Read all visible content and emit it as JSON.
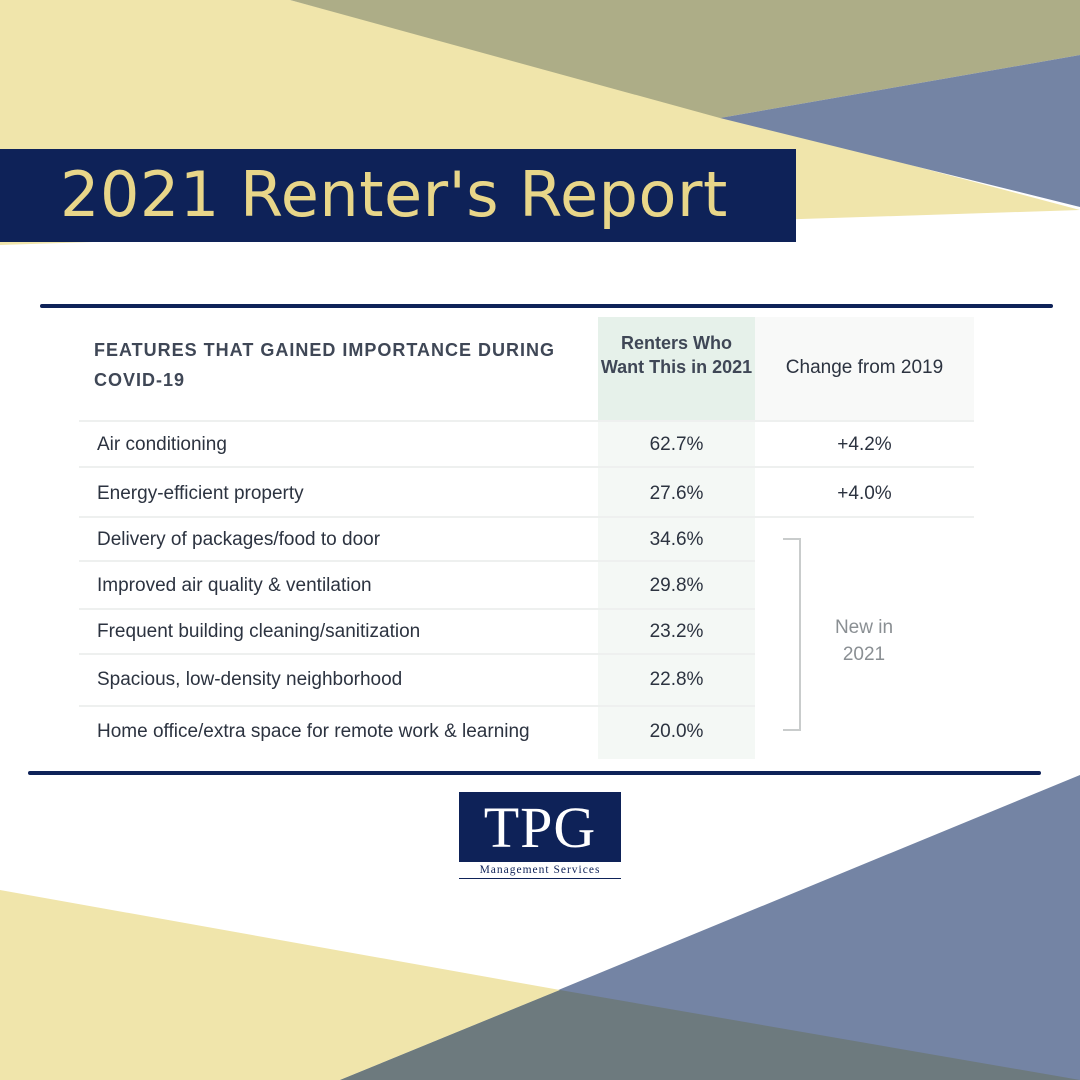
{
  "banner": {
    "title": "2021 Renter's Report"
  },
  "table": {
    "feature_header": "FEATURES THAT GAINED IMPORTANCE DURING COVID-19",
    "value_header": "Renters Who Want This in 2021",
    "change_header": "Change from 2019",
    "rows": [
      {
        "feature": "Air conditioning",
        "value": "62.7%",
        "change": "+4.2%"
      },
      {
        "feature": "Energy-efficient property",
        "value": "27.6%",
        "change": "+4.0%"
      },
      {
        "feature": "Delivery of packages/food to door",
        "value": "34.6%"
      },
      {
        "feature": "Improved air quality & ventilation",
        "value": "29.8%"
      },
      {
        "feature": "Frequent building cleaning/sanitization",
        "value": "23.2%"
      },
      {
        "feature": "Spacious, low-density neighborhood",
        "value": "22.8%"
      },
      {
        "feature": "Home office/extra space for remote work & learning",
        "value": "20.0%"
      }
    ],
    "new_label_line1": "New in",
    "new_label_line2": "2021"
  },
  "logo": {
    "text": "TPG",
    "subtitle": "Management Services"
  },
  "colors": {
    "navy": "#0e2258",
    "gold_text": "#e8d689",
    "yellow": "#f0e5ab",
    "olive": "#adad87",
    "slate_blue": "#7484a4",
    "dark_slate": "#6d7a7e"
  }
}
